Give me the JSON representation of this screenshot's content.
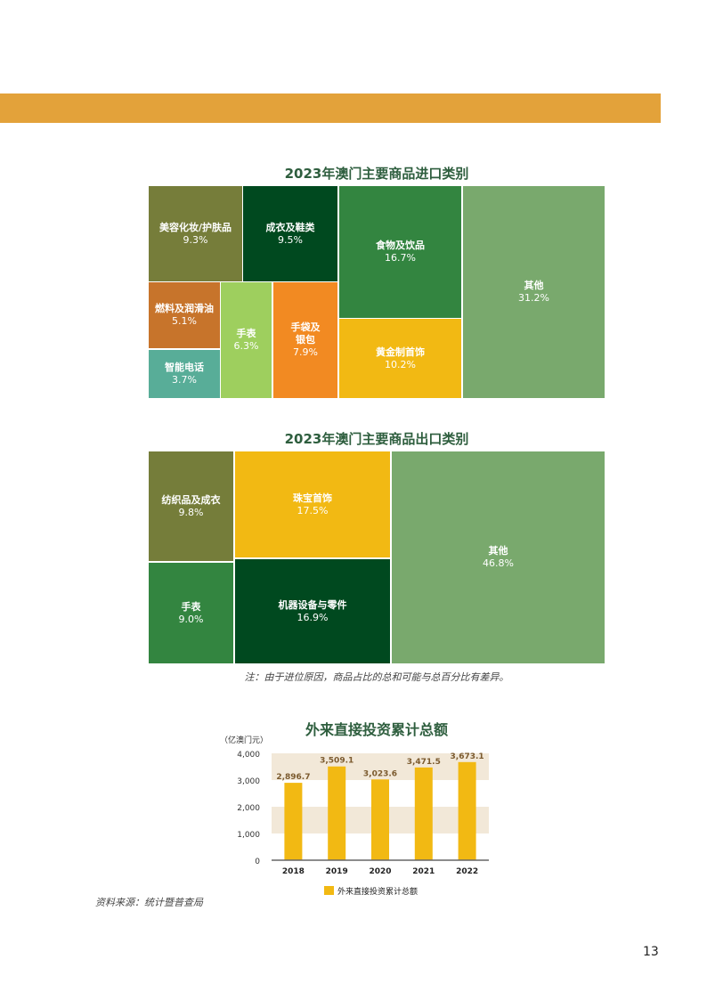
{
  "chart_data": [
    {
      "type": "treemap",
      "title": "2023年澳门主要商品进口类别",
      "items": [
        {
          "label": "美容化妆/护肤品",
          "value": "9.3%",
          "color": "#767d3a"
        },
        {
          "label": "成衣及鞋类",
          "value": "9.5%",
          "color": "#00491f"
        },
        {
          "label": "食物及饮品",
          "value": "16.7%",
          "color": "#338540"
        },
        {
          "label": "其他",
          "value": "31.2%",
          "color": "#79a96d"
        },
        {
          "label": "燃料及润滑油",
          "value": "5.1%",
          "color": "#c7742b"
        },
        {
          "label": "智能电话",
          "value": "3.7%",
          "color": "#58ad98"
        },
        {
          "label": "手表",
          "value": "6.3%",
          "color": "#9ecf5e"
        },
        {
          "label": "手袋及银包",
          "value": "7.9%",
          "color": "#f28a22"
        },
        {
          "label": "黄金制首饰",
          "value": "10.2%",
          "color": "#f2b913"
        }
      ]
    },
    {
      "type": "treemap",
      "title": "2023年澳门主要商品出口类别",
      "items": [
        {
          "label": "纺织品及成衣",
          "value": "9.8%",
          "color": "#757d3a"
        },
        {
          "label": "珠宝首饰",
          "value": "17.5%",
          "color": "#f2b913"
        },
        {
          "label": "其他",
          "value": "46.8%",
          "color": "#79a96d"
        },
        {
          "label": "手表",
          "value": "9.0%",
          "color": "#338540"
        },
        {
          "label": "机器设备与零件",
          "value": "16.9%",
          "color": "#00491f"
        }
      ]
    },
    {
      "type": "bar",
      "title": "外来直接投资累计总额",
      "ylabel": "（亿澳门元）",
      "categories": [
        "2018",
        "2019",
        "2020",
        "2021",
        "2022"
      ],
      "series": [
        {
          "name": "外来直接投资累计总额",
          "values": [
            2896.7,
            3509.1,
            3023.6,
            3471.5,
            3673.1
          ],
          "labels": [
            "2,896.7",
            "3,509.1",
            "3,023.6",
            "3,471.5",
            "3,673.1"
          ],
          "color": "#f2b913"
        }
      ],
      "ylim": [
        0,
        4000
      ],
      "yticks": [
        "0",
        "1,000",
        "2,000",
        "3,000",
        "4,000"
      ],
      "band_color": "#f2e8d8",
      "legend": "bottom"
    }
  ],
  "note": "注：由于进位原因，商品占比的总和可能与总百分比有差异。",
  "source": "资料来源：统计暨普查局",
  "page_number": "13"
}
